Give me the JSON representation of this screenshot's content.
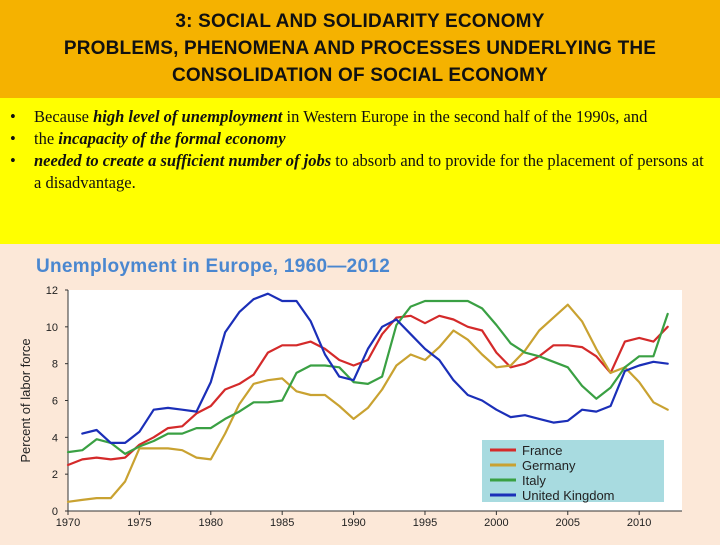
{
  "header": {
    "line1": "3: SOCIAL AND SOLIDARITY ECONOMY",
    "line2": "PROBLEMS, PHENOMENA AND PROCESSES UNDERLYING THE",
    "line3": "CONSOLIDATION OF  SOCIAL ECONOMY"
  },
  "bullets": [
    {
      "pre": "Because ",
      "em": "high level of unemployment",
      "post": " in Western Europe in the second half of the 1990s, and"
    },
    {
      "pre": "the ",
      "em": "incapacity of the formal economy",
      "post": ""
    },
    {
      "pre": "",
      "em": "needed to create a sufficient number of jobs",
      "post": " to absorb and to provide for the placement of persons at a disadvantage."
    }
  ],
  "bullet_symbol": "•",
  "colors": {
    "header_bg": "#f5b200",
    "bullets_bg": "#ffff00",
    "page_bg": "#fce8d8",
    "legend_bg": "#a8dbe0",
    "chart_title": "#4a87d0"
  },
  "chart_data": {
    "type": "line",
    "title": "Unemployment in Europe, 1960—2012",
    "xlabel": "",
    "ylabel": "Percent of labor force",
    "xlim": [
      1970,
      2013
    ],
    "ylim": [
      0,
      12
    ],
    "xticks": [
      1970,
      1975,
      1980,
      1985,
      1990,
      1995,
      2000,
      2005,
      2010
    ],
    "yticks": [
      0,
      2,
      4,
      6,
      8,
      10,
      12
    ],
    "grid": false,
    "legend": "bottom-right",
    "series": [
      {
        "name": "France",
        "color": "#d42a2a",
        "x": [
          1970,
          1971,
          1972,
          1973,
          1974,
          1975,
          1976,
          1977,
          1978,
          1979,
          1980,
          1981,
          1982,
          1983,
          1984,
          1985,
          1986,
          1987,
          1988,
          1989,
          1990,
          1991,
          1992,
          1993,
          1994,
          1995,
          1996,
          1997,
          1998,
          1999,
          2000,
          2001,
          2002,
          2003,
          2004,
          2005,
          2006,
          2007,
          2008,
          2009,
          2010,
          2011,
          2012
        ],
        "y": [
          2.5,
          2.8,
          2.9,
          2.8,
          2.9,
          3.6,
          4.0,
          4.5,
          4.6,
          5.3,
          5.7,
          6.6,
          6.9,
          7.4,
          8.6,
          9.0,
          9.0,
          9.2,
          8.8,
          8.2,
          7.9,
          8.2,
          9.6,
          10.5,
          10.6,
          10.2,
          10.6,
          10.4,
          10.0,
          9.8,
          8.6,
          7.8,
          8.0,
          8.4,
          9.0,
          9.0,
          8.9,
          8.4,
          7.5,
          9.2,
          9.4,
          9.2,
          10.0
        ]
      },
      {
        "name": "Germany",
        "color": "#c9a231",
        "x": [
          1970,
          1971,
          1972,
          1973,
          1974,
          1975,
          1976,
          1977,
          1978,
          1979,
          1980,
          1981,
          1982,
          1983,
          1984,
          1985,
          1986,
          1987,
          1988,
          1989,
          1990,
          1991,
          1992,
          1993,
          1994,
          1995,
          1996,
          1997,
          1998,
          1999,
          2000,
          2001,
          2002,
          2003,
          2004,
          2005,
          2006,
          2007,
          2008,
          2009,
          2010,
          2011,
          2012
        ],
        "y": [
          0.5,
          0.6,
          0.7,
          0.7,
          1.6,
          3.4,
          3.4,
          3.4,
          3.3,
          2.9,
          2.8,
          4.2,
          5.8,
          6.9,
          7.1,
          7.2,
          6.5,
          6.3,
          6.3,
          5.7,
          5.0,
          5.6,
          6.6,
          7.9,
          8.5,
          8.2,
          8.9,
          9.8,
          9.3,
          8.5,
          7.8,
          7.9,
          8.7,
          9.8,
          10.5,
          11.2,
          10.3,
          8.8,
          7.5,
          7.8,
          7.0,
          5.9,
          5.5
        ]
      },
      {
        "name": "Italy",
        "color": "#3aa043",
        "x": [
          1970,
          1971,
          1972,
          1973,
          1974,
          1975,
          1976,
          1977,
          1978,
          1979,
          1980,
          1981,
          1982,
          1983,
          1984,
          1985,
          1986,
          1987,
          1988,
          1989,
          1990,
          1991,
          1992,
          1993,
          1994,
          1995,
          1996,
          1997,
          1998,
          1999,
          2000,
          2001,
          2002,
          2003,
          2004,
          2005,
          2006,
          2007,
          2008,
          2009,
          2010,
          2011,
          2012
        ],
        "y": [
          3.2,
          3.3,
          3.9,
          3.7,
          3.1,
          3.5,
          3.8,
          4.2,
          4.2,
          4.5,
          4.5,
          5.0,
          5.4,
          5.9,
          5.9,
          6.0,
          7.5,
          7.9,
          7.9,
          7.8,
          7.0,
          6.9,
          7.3,
          10.1,
          11.1,
          11.4,
          11.4,
          11.4,
          11.4,
          11.0,
          10.1,
          9.1,
          8.6,
          8.4,
          8.1,
          7.8,
          6.8,
          6.1,
          6.7,
          7.8,
          8.4,
          8.4,
          10.7
        ]
      },
      {
        "name": "United Kingdom",
        "color": "#1b2fb8",
        "x": [
          1971,
          1972,
          1973,
          1974,
          1975,
          1976,
          1977,
          1978,
          1979,
          1980,
          1981,
          1982,
          1983,
          1984,
          1985,
          1986,
          1987,
          1988,
          1989,
          1990,
          1991,
          1992,
          1993,
          1994,
          1995,
          1996,
          1997,
          1998,
          1999,
          2000,
          2001,
          2002,
          2003,
          2004,
          2005,
          2006,
          2007,
          2008,
          2009,
          2010,
          2011,
          2012
        ],
        "y": [
          4.2,
          4.4,
          3.7,
          3.7,
          4.3,
          5.5,
          5.6,
          5.5,
          5.4,
          7.0,
          9.7,
          10.8,
          11.5,
          11.8,
          11.4,
          11.4,
          10.3,
          8.5,
          7.3,
          7.1,
          8.8,
          10.0,
          10.4,
          9.6,
          8.8,
          8.2,
          7.1,
          6.3,
          6.0,
          5.5,
          5.1,
          5.2,
          5.0,
          4.8,
          4.9,
          5.5,
          5.4,
          5.7,
          7.6,
          7.9,
          8.1,
          8.0
        ]
      }
    ]
  }
}
